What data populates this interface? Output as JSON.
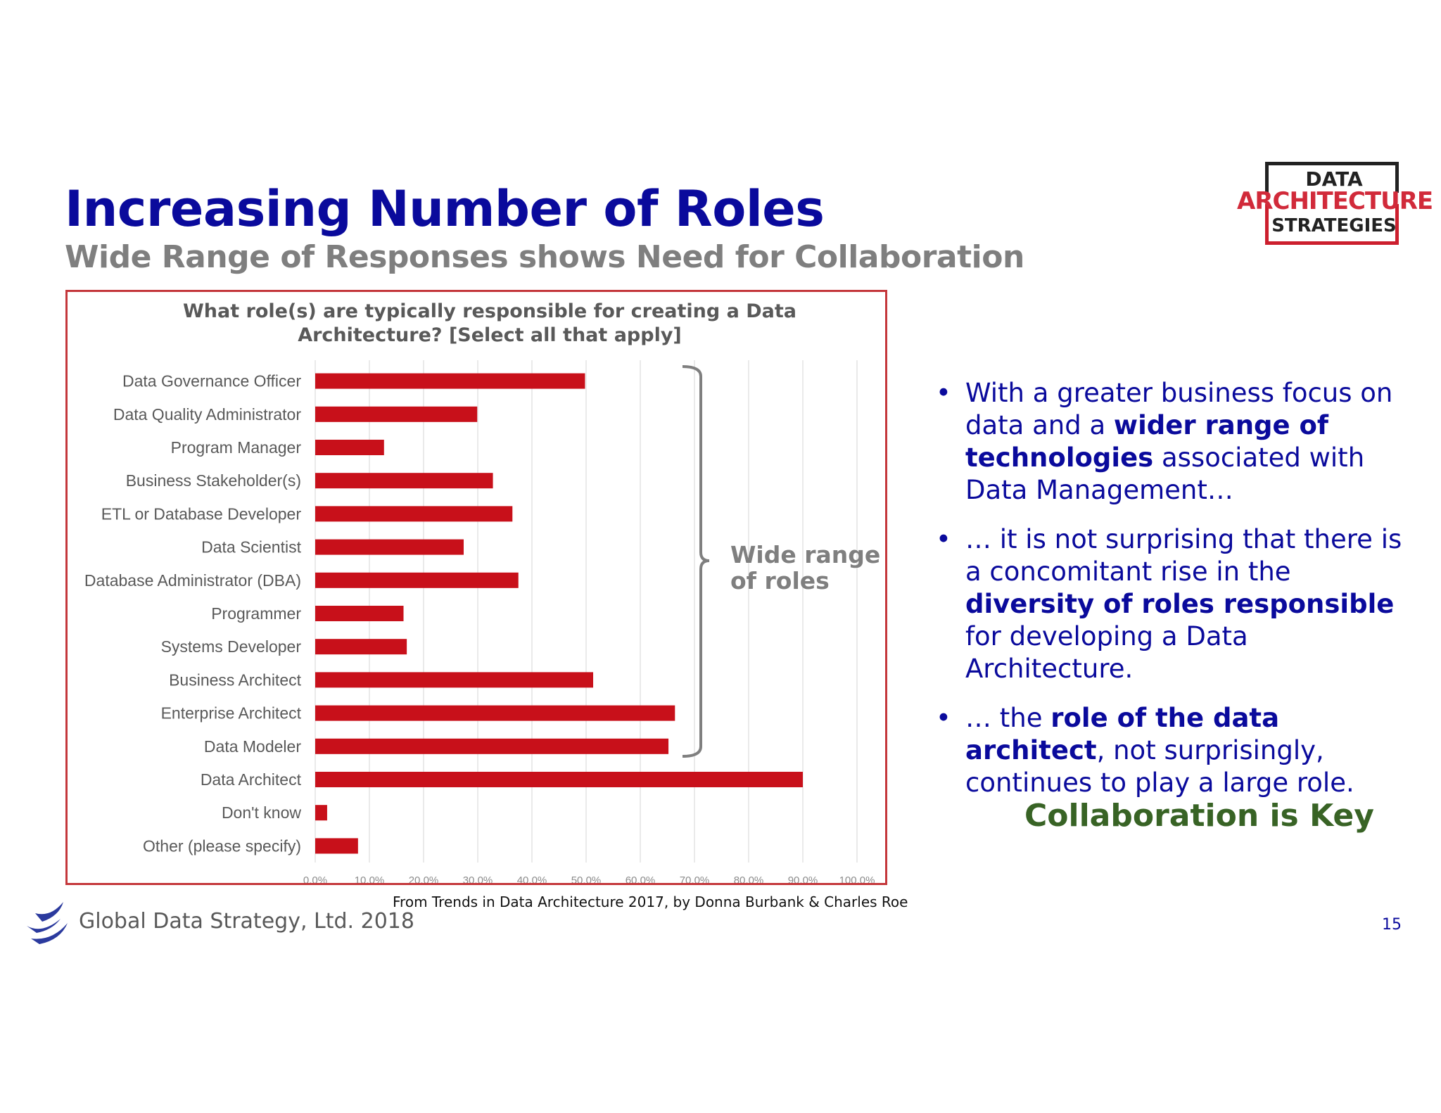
{
  "slide": {
    "title": "Increasing Number of Roles",
    "subtitle": "Wide Range of Responses shows Need for Collaboration",
    "page_number": "15",
    "source_note": "From Trends in Data Architecture 2017, by Donna Burbank & Charles Roe",
    "footer_company": "Global Data Strategy, Ltd. 2018"
  },
  "logo": {
    "line1": "DATA",
    "line2": "ARCHITECTURE",
    "line3": "STRATEGIES",
    "colors": {
      "dark": "#222222",
      "red": "#d12a3a"
    }
  },
  "bracket_label": {
    "line1": "Wide range",
    "line2": "of roles"
  },
  "bullets": [
    {
      "segments": [
        {
          "text": "With a greater business focus on data and a ",
          "bold": false
        },
        {
          "text": "wider range of technologies",
          "bold": true
        },
        {
          "text": " associated with Data Management…",
          "bold": false
        }
      ]
    },
    {
      "segments": [
        {
          "text": "… it is not surprising that there is a concomitant rise in the ",
          "bold": false
        },
        {
          "text": "diversity of roles responsible",
          "bold": true
        },
        {
          "text": " for developing a Data Architecture.",
          "bold": false
        }
      ]
    },
    {
      "segments": [
        {
          "text": "… the ",
          "bold": false
        },
        {
          "text": "role of the data architect",
          "bold": true
        },
        {
          "text": ", not surprisingly, continues to play a large role.",
          "bold": false
        }
      ]
    }
  ],
  "conclusion": "Collaboration is Key",
  "colors": {
    "title": "#0a0a9c",
    "subtitle": "#7f7f7f",
    "bar": "#c8101a",
    "frame": "#c4373b",
    "conclusion": "#386325"
  },
  "chart_data": {
    "type": "bar",
    "orientation": "horizontal",
    "title_line1": "What role(s) are typically responsible for creating a Data",
    "title_line2": "Architecture? [Select all that apply]",
    "categories": [
      "Data Governance Officer",
      "Data Quality Administrator",
      "Program Manager",
      "Business Stakeholder(s)",
      "ETL or Database Developer",
      "Data Scientist",
      "Database Administrator (DBA)",
      "Programmer",
      "Systems Developer",
      "Business Architect",
      "Enterprise Architect",
      "Data Modeler",
      "Data Architect",
      "Don't know",
      "Other (please specify)"
    ],
    "values": [
      49.8,
      29.9,
      12.7,
      32.8,
      36.4,
      27.4,
      37.5,
      16.3,
      16.9,
      51.3,
      66.4,
      65.2,
      90.0,
      2.2,
      7.9
    ],
    "x_ticks": [
      "0.0%",
      "10.0%",
      "20.0%",
      "30.0%",
      "40.0%",
      "50.0%",
      "60.0%",
      "70.0%",
      "80.0%",
      "90.0%",
      "100.0%"
    ],
    "xlim": [
      0,
      100
    ],
    "grid": "vertical",
    "legend": "none"
  }
}
